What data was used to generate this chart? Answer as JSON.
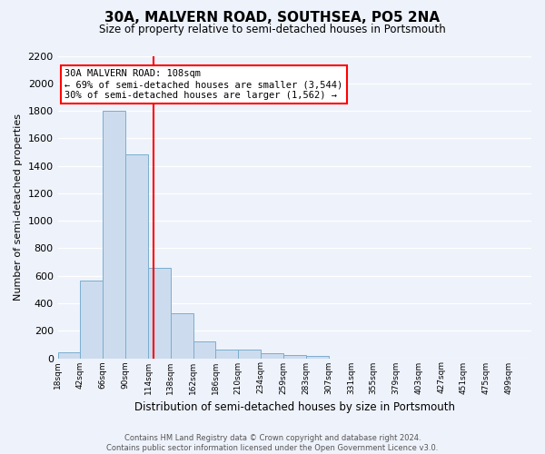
{
  "title": "30A, MALVERN ROAD, SOUTHSEA, PO5 2NA",
  "subtitle": "Size of property relative to semi-detached houses in Portsmouth",
  "bar_heights": [
    40,
    565,
    1800,
    1480,
    660,
    325,
    120,
    65,
    60,
    35,
    25,
    15,
    0,
    0,
    0,
    0,
    0,
    0,
    0,
    0
  ],
  "bin_lefts": [
    6,
    30,
    54,
    78,
    102,
    126,
    150,
    174,
    198,
    222,
    246,
    270,
    294,
    318,
    342,
    366,
    390,
    414,
    438,
    462
  ],
  "bin_width": 24,
  "xlim_left": 6,
  "xlim_right": 510,
  "tick_positions": [
    6,
    30,
    54,
    78,
    102,
    126,
    150,
    174,
    198,
    222,
    246,
    270,
    294,
    318,
    342,
    366,
    390,
    414,
    438,
    462,
    486
  ],
  "tick_labels": [
    "18sqm",
    "42sqm",
    "66sqm",
    "90sqm",
    "114sqm",
    "138sqm",
    "162sqm",
    "186sqm",
    "210sqm",
    "234sqm",
    "259sqm",
    "283sqm",
    "307sqm",
    "331sqm",
    "355sqm",
    "379sqm",
    "403sqm",
    "427sqm",
    "451sqm",
    "475sqm",
    "499sqm"
  ],
  "xlabel": "Distribution of semi-detached houses by size in Portsmouth",
  "ylabel": "Number of semi-detached properties",
  "ylim": [
    0,
    2200
  ],
  "yticks": [
    0,
    200,
    400,
    600,
    800,
    1000,
    1200,
    1400,
    1600,
    1800,
    2000,
    2200
  ],
  "bar_color": "#ccdcee",
  "bar_edge_color": "#7aaece",
  "vline_x": 108,
  "vline_color": "red",
  "annotation_line1": "30A MALVERN ROAD: 108sqm",
  "annotation_line2": "← 69% of semi-detached houses are smaller (3,544)",
  "annotation_line3": "30% of semi-detached houses are larger (1,562) →",
  "annotation_box_facecolor": "white",
  "annotation_box_edgecolor": "red",
  "footer_line1": "Contains HM Land Registry data © Crown copyright and database right 2024.",
  "footer_line2": "Contains public sector information licensed under the Open Government Licence v3.0.",
  "background_color": "#eef2fb",
  "grid_color": "white",
  "title_fontsize": 11,
  "subtitle_fontsize": 8.5,
  "ylabel_fontsize": 8,
  "xlabel_fontsize": 8.5,
  "tick_fontsize_y": 8,
  "tick_fontsize_x": 6.5,
  "annotation_fontsize": 7.5,
  "footer_fontsize": 6
}
